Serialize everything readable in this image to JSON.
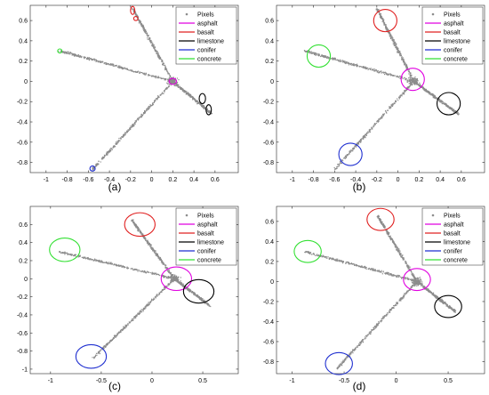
{
  "colors": {
    "pixels": "#8c8c8c",
    "asphalt": "#e000e0",
    "basalt": "#e02020",
    "limestone": "#000000",
    "conifer": "#1f2fd0",
    "concrete": "#33e033"
  },
  "legend_labels": [
    "Pixels",
    "asphalt",
    "basalt",
    "limestone",
    "conifer",
    "concrete"
  ],
  "chart_data": [
    {
      "panel_label": "(a)",
      "type": "scatter",
      "xlim": [
        -1.15,
        0.82
      ],
      "ylim": [
        -0.9,
        0.75
      ],
      "xticks": [
        -1,
        -0.8,
        -0.6,
        -0.4,
        -0.2,
        0,
        0.2,
        0.4,
        0.6
      ],
      "xtick_labels": [
        "-1",
        "-0.8",
        "-0.6",
        "-0.4",
        "-0.2",
        "0",
        "0.2",
        "0.4",
        "0.6"
      ],
      "yticks": [
        -0.8,
        -0.6,
        -0.4,
        -0.2,
        0,
        0.2,
        0.4,
        0.6
      ],
      "ytick_labels": [
        "-0.8",
        "-0.6",
        "-0.4",
        "-0.2",
        "0",
        "0.2",
        "0.4",
        "0.6"
      ],
      "arms": [
        {
          "from": [
            0.2,
            0.0
          ],
          "to": [
            -0.18,
            0.72
          ]
        },
        {
          "from": [
            0.2,
            0.0
          ],
          "to": [
            -0.87,
            0.3
          ]
        },
        {
          "from": [
            0.2,
            0.0
          ],
          "to": [
            0.57,
            -0.32
          ]
        },
        {
          "from": [
            0.2,
            0.0
          ],
          "to": [
            -0.56,
            -0.87
          ]
        }
      ],
      "series": [
        {
          "name": "asphalt",
          "markers": [
            {
              "x": 0.2,
              "y": 0.0,
              "rx": 0.035,
              "ry": 0.03
            }
          ]
        },
        {
          "name": "basalt",
          "markers": [
            {
              "x": -0.18,
              "y": 0.7,
              "rx": 0.02,
              "ry": 0.04
            },
            {
              "x": -0.15,
              "y": 0.62,
              "rx": 0.02,
              "ry": 0.02
            }
          ]
        },
        {
          "name": "limestone",
          "markers": [
            {
              "x": 0.48,
              "y": -0.17,
              "rx": 0.03,
              "ry": 0.05
            },
            {
              "x": 0.54,
              "y": -0.28,
              "rx": 0.025,
              "ry": 0.05
            }
          ]
        },
        {
          "name": "conifer",
          "markers": [
            {
              "x": -0.56,
              "y": -0.86,
              "rx": 0.025,
              "ry": 0.025
            }
          ]
        },
        {
          "name": "concrete",
          "markers": [
            {
              "x": -0.87,
              "y": 0.3,
              "rx": 0.02,
              "ry": 0.02
            }
          ]
        }
      ]
    },
    {
      "panel_label": "(b)",
      "type": "scatter",
      "xlim": [
        -1.15,
        0.82
      ],
      "ylim": [
        -0.9,
        0.75
      ],
      "xticks": [
        -1,
        -0.8,
        -0.6,
        -0.4,
        -0.2,
        0,
        0.2,
        0.4,
        0.6
      ],
      "xtick_labels": [
        "-1",
        "-0.8",
        "-0.6",
        "-0.4",
        "-0.2",
        "0",
        "0.2",
        "0.4",
        "0.6"
      ],
      "yticks": [
        -0.8,
        -0.6,
        -0.4,
        -0.2,
        0,
        0.2,
        0.4,
        0.6
      ],
      "ytick_labels": [
        "-0.8",
        "-0.6",
        "-0.4",
        "-0.2",
        "0",
        "0.2",
        "0.4",
        "0.6"
      ],
      "arms": [
        {
          "from": [
            0.15,
            0.0
          ],
          "to": [
            -0.2,
            0.72
          ]
        },
        {
          "from": [
            0.15,
            0.0
          ],
          "to": [
            -0.88,
            0.3
          ]
        },
        {
          "from": [
            0.15,
            0.0
          ],
          "to": [
            0.57,
            -0.32
          ]
        },
        {
          "from": [
            0.15,
            0.0
          ],
          "to": [
            -0.6,
            -0.87
          ]
        }
      ],
      "series": [
        {
          "name": "asphalt",
          "markers": [
            {
              "x": 0.14,
              "y": 0.02,
              "rx": 0.11,
              "ry": 0.11
            }
          ]
        },
        {
          "name": "basalt",
          "markers": [
            {
              "x": -0.12,
              "y": 0.6,
              "rx": 0.11,
              "ry": 0.11
            }
          ]
        },
        {
          "name": "limestone",
          "markers": [
            {
              "x": 0.48,
              "y": -0.22,
              "rx": 0.11,
              "ry": 0.11
            }
          ]
        },
        {
          "name": "conifer",
          "markers": [
            {
              "x": -0.45,
              "y": -0.72,
              "rx": 0.11,
              "ry": 0.11
            }
          ]
        },
        {
          "name": "concrete",
          "markers": [
            {
              "x": -0.75,
              "y": 0.25,
              "rx": 0.11,
              "ry": 0.11
            }
          ]
        }
      ]
    },
    {
      "panel_label": "(c)",
      "type": "scatter",
      "xlim": [
        -1.2,
        0.85
      ],
      "ylim": [
        -1.05,
        0.8
      ],
      "xticks": [
        -1,
        -0.5,
        0,
        0.5
      ],
      "xtick_labels": [
        "-1",
        "-0.5",
        "0",
        "0.5"
      ],
      "yticks": [
        -1,
        -0.8,
        -0.6,
        -0.4,
        -0.2,
        0,
        0.2,
        0.4,
        0.6
      ],
      "ytick_labels": [
        "-1",
        "-0.8",
        "-0.6",
        "-0.4",
        "-0.2",
        "0",
        "0.2",
        "0.4",
        "0.6"
      ],
      "arms": [
        {
          "from": [
            0.22,
            0.0
          ],
          "to": [
            -0.2,
            0.65
          ]
        },
        {
          "from": [
            0.22,
            0.0
          ],
          "to": [
            -0.92,
            0.3
          ]
        },
        {
          "from": [
            0.22,
            0.0
          ],
          "to": [
            0.57,
            -0.3
          ]
        },
        {
          "from": [
            0.22,
            0.0
          ],
          "to": [
            -0.58,
            -0.88
          ]
        }
      ],
      "series": [
        {
          "name": "asphalt",
          "markers": [
            {
              "x": 0.24,
              "y": 0.0,
              "rx": 0.15,
              "ry": 0.13
            }
          ]
        },
        {
          "name": "basalt",
          "markers": [
            {
              "x": -0.12,
              "y": 0.6,
              "rx": 0.15,
              "ry": 0.13
            }
          ]
        },
        {
          "name": "limestone",
          "markers": [
            {
              "x": 0.46,
              "y": -0.14,
              "rx": 0.15,
              "ry": 0.13
            }
          ]
        },
        {
          "name": "conifer",
          "markers": [
            {
              "x": -0.6,
              "y": -0.86,
              "rx": 0.15,
              "ry": 0.13
            }
          ]
        },
        {
          "name": "concrete",
          "markers": [
            {
              "x": -0.86,
              "y": 0.32,
              "rx": 0.15,
              "ry": 0.13
            }
          ]
        }
      ]
    },
    {
      "panel_label": "(d)",
      "type": "scatter",
      "xlim": [
        -1.15,
        0.85
      ],
      "ylim": [
        -0.92,
        0.75
      ],
      "xticks": [
        -1,
        -0.5,
        0,
        0.5
      ],
      "xtick_labels": [
        "-1",
        "-0.5",
        "0",
        "0.5"
      ],
      "yticks": [
        -0.8,
        -0.6,
        -0.4,
        -0.2,
        0,
        0.2,
        0.4,
        0.6
      ],
      "ytick_labels": [
        "-0.8",
        "-0.6",
        "-0.4",
        "-0.2",
        "0",
        "0.2",
        "0.4",
        "0.6"
      ],
      "arms": [
        {
          "from": [
            0.2,
            0.0
          ],
          "to": [
            -0.18,
            0.66
          ]
        },
        {
          "from": [
            0.2,
            0.0
          ],
          "to": [
            -0.88,
            0.3
          ]
        },
        {
          "from": [
            0.2,
            0.0
          ],
          "to": [
            0.57,
            -0.3
          ]
        },
        {
          "from": [
            0.2,
            0.0
          ],
          "to": [
            -0.57,
            -0.87
          ]
        }
      ],
      "series": [
        {
          "name": "asphalt",
          "markers": [
            {
              "x": 0.2,
              "y": 0.02,
              "rx": 0.13,
              "ry": 0.11
            }
          ]
        },
        {
          "name": "basalt",
          "markers": [
            {
              "x": -0.15,
              "y": 0.62,
              "rx": 0.13,
              "ry": 0.11
            }
          ]
        },
        {
          "name": "limestone",
          "markers": [
            {
              "x": 0.5,
              "y": -0.25,
              "rx": 0.13,
              "ry": 0.11
            }
          ]
        },
        {
          "name": "conifer",
          "markers": [
            {
              "x": -0.55,
              "y": -0.82,
              "rx": 0.13,
              "ry": 0.11
            }
          ]
        },
        {
          "name": "concrete",
          "markers": [
            {
              "x": -0.85,
              "y": 0.3,
              "rx": 0.13,
              "ry": 0.11
            }
          ]
        }
      ]
    }
  ]
}
